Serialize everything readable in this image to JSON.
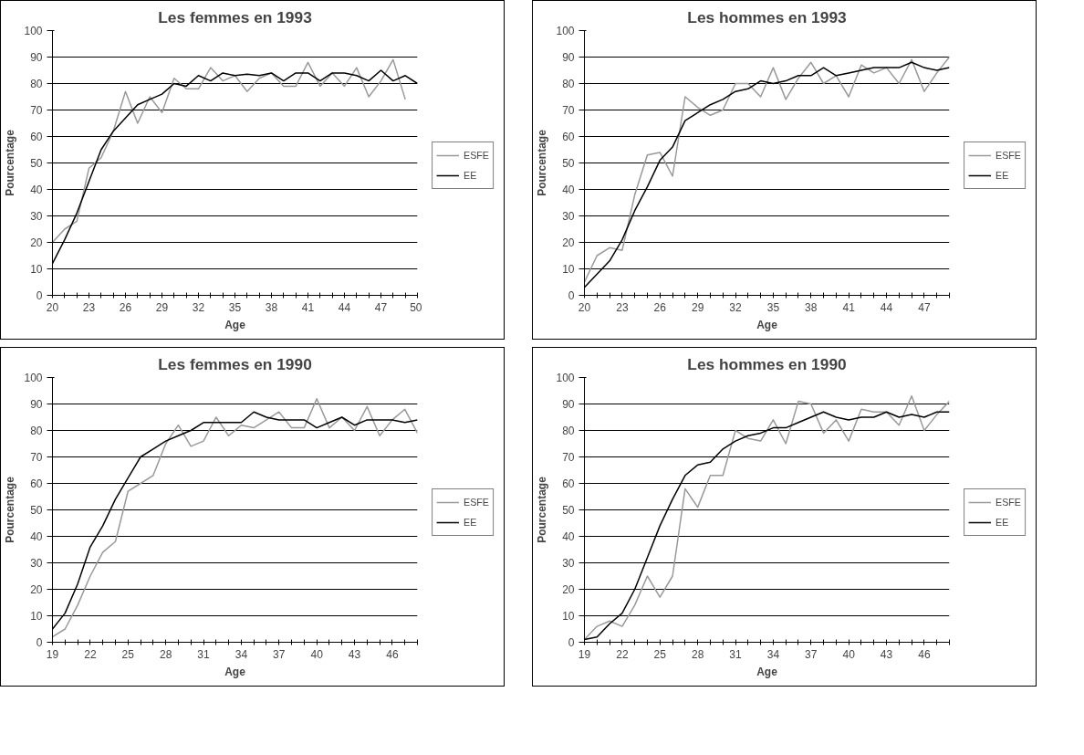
{
  "chart_data": [
    {
      "type": "line",
      "title": "Les femmes en 1993",
      "xlabel": "Age",
      "ylabel": "Pourcentage",
      "legend": "right",
      "grid": "y",
      "marker": "none",
      "line_style": "solid",
      "x": [
        20,
        21,
        22,
        23,
        24,
        25,
        26,
        27,
        28,
        29,
        30,
        31,
        32,
        33,
        34,
        35,
        36,
        37,
        38,
        39,
        40,
        41,
        42,
        43,
        44,
        45,
        46,
        47,
        48,
        49,
        50
      ],
      "xlim": [
        20,
        50
      ],
      "ylim": [
        0,
        100
      ],
      "yticks": [
        0,
        10,
        20,
        30,
        40,
        50,
        60,
        70,
        80,
        90,
        100
      ],
      "xticks": [
        20,
        {
          "value": 21,
          "label": null
        },
        {
          "value": 22,
          "label": null
        },
        23,
        {
          "value": 24,
          "label": null
        },
        {
          "value": 25,
          "label": null
        },
        26,
        {
          "value": 27,
          "label": null
        },
        {
          "value": 28,
          "label": null
        },
        29,
        {
          "value": 30,
          "label": null
        },
        {
          "value": 31,
          "label": null
        },
        32,
        {
          "value": 33,
          "label": null
        },
        {
          "value": 34,
          "label": null
        },
        35,
        {
          "value": 36,
          "label": null
        },
        {
          "value": 37,
          "label": null
        },
        38,
        {
          "value": 39,
          "label": null
        },
        {
          "value": 40,
          "label": null
        },
        41,
        {
          "value": 42,
          "label": null
        },
        {
          "value": 43,
          "label": null
        },
        44,
        {
          "value": 45,
          "label": null
        },
        {
          "value": 46,
          "label": null
        },
        47,
        {
          "value": 48,
          "label": null
        },
        {
          "value": 49,
          "label": null
        },
        50
      ],
      "series": [
        {
          "name": "ESFE",
          "color": "#999999",
          "values": [
            20,
            25,
            28,
            48,
            52,
            62,
            77,
            65,
            75,
            69,
            82,
            78,
            78,
            86,
            81,
            83,
            77,
            82,
            84,
            79,
            79,
            88,
            79,
            84,
            79,
            86,
            75,
            81,
            89,
            74,
            null
          ]
        },
        {
          "name": "EE",
          "color": "#000000",
          "values": [
            12,
            21,
            31,
            43,
            55,
            62,
            67,
            72,
            74,
            76,
            80,
            79,
            83,
            81,
            84,
            83,
            83.5,
            83,
            84,
            81,
            84,
            84,
            81,
            84,
            84,
            83,
            81,
            85,
            81,
            83,
            80
          ]
        }
      ]
    },
    {
      "type": "line",
      "title": "Les hommes en 1993",
      "xlabel": "Age",
      "ylabel": "Pourcentage",
      "legend": "right",
      "grid": "y",
      "marker": "none",
      "line_style": "solid",
      "x": [
        20,
        21,
        22,
        23,
        24,
        25,
        26,
        27,
        28,
        29,
        30,
        31,
        32,
        33,
        34,
        35,
        36,
        37,
        38,
        39,
        40,
        41,
        42,
        43,
        44,
        45,
        46,
        47,
        48,
        49
      ],
      "xlim": [
        20,
        49
      ],
      "ylim": [
        0,
        100
      ],
      "yticks": [
        0,
        10,
        20,
        30,
        40,
        50,
        60,
        70,
        80,
        90,
        100
      ],
      "xticks": [
        20,
        {
          "value": 21,
          "label": null
        },
        {
          "value": 22,
          "label": null
        },
        23,
        {
          "value": 24,
          "label": null
        },
        {
          "value": 25,
          "label": null
        },
        26,
        {
          "value": 27,
          "label": null
        },
        {
          "value": 28,
          "label": null
        },
        29,
        {
          "value": 30,
          "label": null
        },
        {
          "value": 31,
          "label": null
        },
        32,
        {
          "value": 33,
          "label": null
        },
        {
          "value": 34,
          "label": null
        },
        35,
        {
          "value": 36,
          "label": null
        },
        {
          "value": 37,
          "label": null
        },
        38,
        {
          "value": 39,
          "label": null
        },
        {
          "value": 40,
          "label": null
        },
        41,
        {
          "value": 42,
          "label": null
        },
        {
          "value": 43,
          "label": null
        },
        44,
        {
          "value": 45,
          "label": null
        },
        {
          "value": 46,
          "label": null
        },
        47,
        {
          "value": 48,
          "label": null
        },
        {
          "value": 49,
          "label": null
        }
      ],
      "series": [
        {
          "name": "ESFE",
          "color": "#999999",
          "values": [
            5,
            15,
            18,
            17,
            38,
            53,
            54,
            45,
            75,
            71,
            68,
            70,
            80,
            80,
            75,
            86,
            74,
            82,
            88,
            80,
            83,
            75,
            87,
            84,
            86,
            80,
            89,
            77,
            84,
            90
          ]
        },
        {
          "name": "EE",
          "color": "#000000",
          "values": [
            3,
            8,
            13,
            21,
            32,
            41,
            51,
            56,
            66,
            69,
            72,
            74,
            77,
            78,
            81,
            80,
            81,
            83,
            83,
            86,
            83,
            84,
            85,
            86,
            86,
            86,
            88,
            86,
            85,
            86
          ]
        }
      ]
    },
    {
      "type": "line",
      "title": "Les femmes en 1990",
      "xlabel": "Age",
      "ylabel": "Pourcentage",
      "legend": "right",
      "grid": "y",
      "marker": "none",
      "line_style": "solid",
      "x": [
        19,
        20,
        21,
        22,
        23,
        24,
        25,
        26,
        27,
        28,
        29,
        30,
        31,
        32,
        33,
        34,
        35,
        36,
        37,
        38,
        39,
        40,
        41,
        42,
        43,
        44,
        45,
        46,
        47,
        48
      ],
      "xlim": [
        19,
        48
      ],
      "ylim": [
        0,
        100
      ],
      "yticks": [
        0,
        10,
        20,
        30,
        40,
        50,
        60,
        70,
        80,
        90,
        100
      ],
      "xticks": [
        19,
        {
          "value": 20,
          "label": null
        },
        {
          "value": 21,
          "label": null
        },
        22,
        {
          "value": 23,
          "label": null
        },
        {
          "value": 24,
          "label": null
        },
        25,
        {
          "value": 26,
          "label": null
        },
        {
          "value": 27,
          "label": null
        },
        28,
        {
          "value": 29,
          "label": null
        },
        {
          "value": 30,
          "label": null
        },
        31,
        {
          "value": 32,
          "label": null
        },
        {
          "value": 33,
          "label": null
        },
        34,
        {
          "value": 35,
          "label": null
        },
        {
          "value": 36,
          "label": null
        },
        37,
        {
          "value": 38,
          "label": null
        },
        {
          "value": 39,
          "label": null
        },
        40,
        {
          "value": 41,
          "label": null
        },
        {
          "value": 42,
          "label": null
        },
        43,
        {
          "value": 44,
          "label": null
        },
        {
          "value": 45,
          "label": null
        },
        46,
        {
          "value": 47,
          "label": null
        },
        {
          "value": 48,
          "label": null
        }
      ],
      "series": [
        {
          "name": "ESFE",
          "color": "#999999",
          "values": [
            2,
            5,
            14,
            25,
            34,
            38,
            57,
            60,
            63,
            75,
            82,
            74,
            76,
            85,
            78,
            82,
            81,
            84,
            87,
            81,
            81,
            92,
            81,
            85,
            80,
            89,
            78,
            84,
            88,
            79
          ]
        },
        {
          "name": "EE",
          "color": "#000000",
          "values": [
            5,
            11,
            22,
            36,
            44,
            54,
            62,
            70,
            73,
            76,
            78,
            80,
            83,
            83,
            83,
            83,
            87,
            85,
            84,
            84,
            84,
            81,
            83,
            85,
            82,
            84,
            84,
            84,
            83,
            84
          ]
        }
      ]
    },
    {
      "type": "line",
      "title": "Les hommes en 1990",
      "xlabel": "Age",
      "ylabel": "Pourcentage",
      "legend": "right",
      "grid": "y",
      "marker": "none",
      "line_style": "solid",
      "x": [
        19,
        20,
        21,
        22,
        23,
        24,
        25,
        26,
        27,
        28,
        29,
        30,
        31,
        32,
        33,
        34,
        35,
        36,
        37,
        38,
        39,
        40,
        41,
        42,
        43,
        44,
        45,
        46,
        47,
        48
      ],
      "xlim": [
        19,
        48
      ],
      "ylim": [
        0,
        100
      ],
      "yticks": [
        0,
        10,
        20,
        30,
        40,
        50,
        60,
        70,
        80,
        90,
        100
      ],
      "xticks": [
        19,
        {
          "value": 20,
          "label": null
        },
        {
          "value": 21,
          "label": null
        },
        22,
        {
          "value": 23,
          "label": null
        },
        {
          "value": 24,
          "label": null
        },
        25,
        {
          "value": 26,
          "label": null
        },
        {
          "value": 27,
          "label": null
        },
        28,
        {
          "value": 29,
          "label": null
        },
        {
          "value": 30,
          "label": null
        },
        31,
        {
          "value": 32,
          "label": null
        },
        {
          "value": 33,
          "label": null
        },
        34,
        {
          "value": 35,
          "label": null
        },
        {
          "value": 36,
          "label": null
        },
        37,
        {
          "value": 38,
          "label": null
        },
        {
          "value": 39,
          "label": null
        },
        40,
        {
          "value": 41,
          "label": null
        },
        {
          "value": 42,
          "label": null
        },
        43,
        {
          "value": 44,
          "label": null
        },
        {
          "value": 45,
          "label": null
        },
        46,
        {
          "value": 47,
          "label": null
        },
        {
          "value": 48,
          "label": null
        }
      ],
      "series": [
        {
          "name": "ESFE",
          "color": "#999999",
          "values": [
            1,
            6,
            8,
            6,
            14,
            25,
            17,
            25,
            58,
            51,
            63,
            63,
            80,
            77,
            76,
            84,
            75,
            91,
            90,
            79,
            84,
            76,
            88,
            87,
            87,
            82,
            93,
            80,
            86,
            91
          ]
        },
        {
          "name": "EE",
          "color": "#000000",
          "values": [
            1,
            2,
            7,
            11,
            20,
            32,
            44,
            54,
            63,
            67,
            68,
            73,
            76,
            78,
            79,
            81,
            81,
            83,
            85,
            87,
            85,
            84,
            85,
            85,
            87,
            85,
            86,
            85,
            87,
            87
          ]
        }
      ]
    }
  ]
}
